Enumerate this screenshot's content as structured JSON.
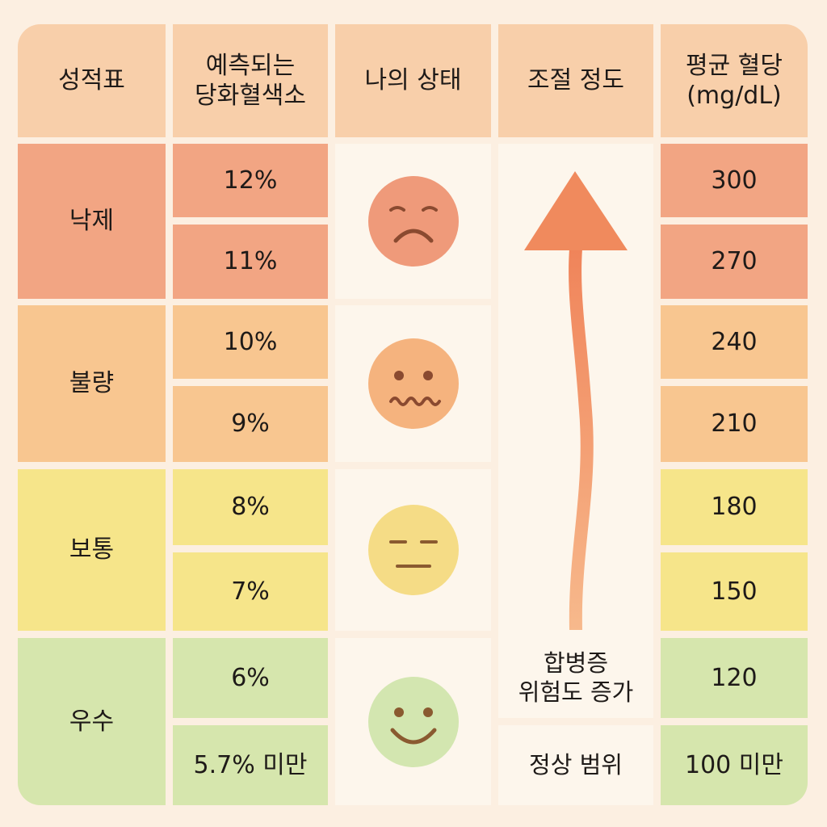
{
  "headers": {
    "grade": "성적표",
    "a1c": "예측되는\n당화혈색소",
    "state": "나의 상태",
    "control": "조절 정도",
    "glucose": "평균 혈당\n(mg/dL)"
  },
  "groups": [
    {
      "grade": "낙제",
      "a1c": [
        "12%",
        "11%"
      ],
      "glucose": [
        "300",
        "270"
      ],
      "face": "sad-face-icon"
    },
    {
      "grade": "불량",
      "a1c": [
        "10%",
        "9%"
      ],
      "glucose": [
        "240",
        "210"
      ],
      "face": "worried-face-icon"
    },
    {
      "grade": "보통",
      "a1c": [
        "8%",
        "7%"
      ],
      "glucose": [
        "180",
        "150"
      ],
      "face": "neutral-face-icon"
    },
    {
      "grade": "우수",
      "a1c": [
        "6%",
        "5.7% 미만"
      ],
      "glucose": [
        "120",
        "100 미만"
      ],
      "face": "smile-face-icon"
    }
  ],
  "control": {
    "risk": "합병증\n위험도 증가",
    "normal": "정상 범위"
  },
  "colors": {
    "header": "#f8cfaa",
    "fail": "#f2a583",
    "poor": "#f8c690",
    "fair": "#f6e58a",
    "good": "#d6e6ad",
    "arrow": "#f08a5d"
  }
}
